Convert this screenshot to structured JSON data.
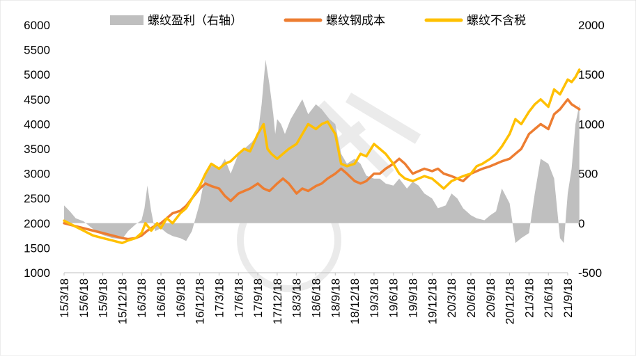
{
  "chart_data": {
    "type": "line",
    "title": "",
    "legend": {
      "placement": "top",
      "items": [
        {
          "label": "螺纹盈利（右轴）",
          "kind": "area",
          "color": "#bfbfbf"
        },
        {
          "label": "螺纹钢成本",
          "kind": "line",
          "color": "#ed7d31"
        },
        {
          "label": "螺纹不含税",
          "kind": "line",
          "color": "#ffc000"
        }
      ]
    },
    "y_left": {
      "min": 1000,
      "max": 6000,
      "ticks": [
        "6000",
        "5500",
        "5000",
        "4500",
        "4000",
        "3500",
        "3000",
        "2500",
        "2000",
        "1500",
        "1000"
      ]
    },
    "y_right": {
      "min": -500,
      "max": 2000,
      "ticks": [
        "2000",
        "1500",
        "1000",
        "500",
        "0",
        "-500"
      ]
    },
    "x_labels": [
      "15/3/18",
      "15/6/18",
      "15/9/18",
      "15/12/18",
      "16/3/18",
      "16/6/18",
      "16/9/18",
      "16/12/18",
      "17/3/18",
      "17/6/18",
      "17/9/18",
      "17/12/18",
      "18/3/18",
      "18/6/18",
      "18/9/18",
      "18/12/18",
      "19/3/18",
      "19/6/18",
      "19/9/18",
      "19/12/18",
      "20/3/18",
      "20/6/18",
      "20/9/18",
      "20/12/18",
      "21/3/18",
      "21/6/18",
      "21/9/18"
    ],
    "series": [
      {
        "name": "螺纹盈利（右轴）",
        "axis": "right",
        "type": "area",
        "color": "#bfbfbf",
        "x": [
          0,
          0.3,
          0.6,
          1,
          1.5,
          2,
          2.5,
          3,
          3.3,
          3.7,
          4,
          4.15,
          4.3,
          4.5,
          4.7,
          5,
          5.3,
          5.6,
          6,
          6.3,
          6.6,
          7,
          7.3,
          7.7,
          8,
          8.3,
          8.6,
          9,
          9.3,
          9.7,
          10,
          10.2,
          10.4,
          10.6,
          10.8,
          10.9,
          11,
          11.2,
          11.4,
          11.7,
          12,
          12.3,
          12.6,
          13,
          13.3,
          13.7,
          14,
          14.3,
          14.6,
          15,
          15.3,
          15.6,
          16,
          16.3,
          16.6,
          17,
          17.3,
          17.7,
          18,
          18.3,
          18.6,
          19,
          19.3,
          19.7,
          20,
          20.3,
          20.6,
          21,
          21.3,
          21.7,
          22,
          22.3,
          22.6,
          23,
          23.3,
          23.6,
          24,
          24.3,
          24.6,
          25,
          25.3,
          25.6,
          25.8,
          26,
          26.2,
          26.4,
          26.6
        ],
        "values": [
          180,
          120,
          50,
          20,
          -60,
          -120,
          -150,
          -160,
          -80,
          -10,
          30,
          150,
          380,
          120,
          -80,
          -50,
          -100,
          -130,
          -150,
          -180,
          -80,
          200,
          500,
          600,
          550,
          650,
          500,
          700,
          750,
          820,
          900,
          1200,
          1650,
          1400,
          1100,
          900,
          1050,
          1000,
          900,
          1050,
          1150,
          1250,
          1100,
          1200,
          1150,
          1050,
          1000,
          700,
          600,
          650,
          600,
          480,
          450,
          450,
          400,
          380,
          450,
          350,
          420,
          380,
          300,
          250,
          150,
          180,
          300,
          250,
          150,
          80,
          50,
          30,
          80,
          120,
          350,
          200,
          -200,
          -150,
          -100,
          300,
          650,
          600,
          450,
          -150,
          -200,
          300,
          550,
          1000,
          1200
        ]
      },
      {
        "name": "螺纹钢成本",
        "axis": "left",
        "type": "line",
        "color": "#ed7d31",
        "x": [
          0,
          0.5,
          1,
          1.5,
          2,
          2.5,
          3,
          3.3,
          3.7,
          4,
          4.3,
          4.7,
          5,
          5.3,
          5.6,
          6,
          6.3,
          6.6,
          7,
          7.3,
          7.6,
          8,
          8.3,
          8.6,
          9,
          9.3,
          9.6,
          10,
          10.3,
          10.6,
          11,
          11.3,
          11.6,
          12,
          12.3,
          12.6,
          13,
          13.3,
          13.6,
          14,
          14.3,
          14.6,
          15,
          15.3,
          15.6,
          16,
          16.3,
          16.6,
          17,
          17.3,
          17.6,
          18,
          18.3,
          18.6,
          19,
          19.3,
          19.6,
          20,
          20.3,
          20.6,
          21,
          21.3,
          21.6,
          22,
          22.3,
          22.6,
          23,
          23.3,
          23.6,
          24,
          24.3,
          24.6,
          25,
          25.3,
          25.6,
          25.8,
          26,
          26.2,
          26.6
        ],
        "values": [
          2000,
          1950,
          1900,
          1850,
          1800,
          1750,
          1700,
          1680,
          1700,
          1750,
          1850,
          1950,
          2000,
          2100,
          2200,
          2250,
          2350,
          2500,
          2700,
          2800,
          2750,
          2700,
          2550,
          2450,
          2600,
          2650,
          2700,
          2800,
          2700,
          2650,
          2800,
          2900,
          2800,
          2600,
          2700,
          2650,
          2750,
          2800,
          2900,
          3000,
          3100,
          3000,
          2850,
          2800,
          2850,
          3000,
          3000,
          3100,
          3200,
          3300,
          3200,
          3000,
          3050,
          3100,
          3050,
          3100,
          3000,
          2950,
          2900,
          2850,
          3000,
          3050,
          3100,
          3150,
          3200,
          3250,
          3300,
          3400,
          3500,
          3800,
          3900,
          4000,
          3900,
          4200,
          4300,
          4400,
          4500,
          4400,
          4300
        ]
      },
      {
        "name": "螺纹不含税",
        "axis": "left",
        "type": "line",
        "color": "#ffc000",
        "x": [
          0,
          0.5,
          1,
          1.5,
          2,
          2.5,
          3,
          3.3,
          3.7,
          4,
          4.2,
          4.5,
          4.8,
          5,
          5.3,
          5.6,
          6,
          6.3,
          6.6,
          7,
          7.3,
          7.6,
          8,
          8.3,
          8.6,
          9,
          9.3,
          9.6,
          10,
          10.3,
          10.5,
          10.7,
          11,
          11.3,
          11.6,
          12,
          12.3,
          12.6,
          13,
          13.3,
          13.6,
          14,
          14.3,
          14.6,
          15,
          15.3,
          15.6,
          16,
          16.3,
          16.6,
          17,
          17.3,
          17.6,
          18,
          18.3,
          18.6,
          19,
          19.3,
          19.6,
          20,
          20.3,
          20.6,
          21,
          21.3,
          21.6,
          22,
          22.3,
          22.6,
          23,
          23.3,
          23.6,
          24,
          24.3,
          24.6,
          25,
          25.3,
          25.6,
          25.8,
          26,
          26.2,
          26.4,
          26.6
        ],
        "values": [
          2050,
          1950,
          1850,
          1750,
          1700,
          1650,
          1600,
          1650,
          1700,
          1800,
          2000,
          1850,
          2000,
          1900,
          2100,
          2000,
          2200,
          2300,
          2500,
          2750,
          3000,
          3200,
          3100,
          3200,
          3250,
          3400,
          3500,
          3450,
          3800,
          4000,
          3500,
          3400,
          3300,
          3400,
          3500,
          3600,
          3800,
          4000,
          3900,
          4000,
          4050,
          3800,
          3200,
          3150,
          3200,
          3400,
          3350,
          3600,
          3500,
          3400,
          3200,
          3000,
          2900,
          2850,
          2900,
          2950,
          2900,
          2800,
          2700,
          2850,
          2900,
          2950,
          3000,
          3150,
          3200,
          3300,
          3400,
          3550,
          3800,
          4100,
          4000,
          4250,
          4400,
          4500,
          4350,
          4700,
          4600,
          4750,
          4900,
          4850,
          4950,
          5100
        ]
      }
    ]
  }
}
